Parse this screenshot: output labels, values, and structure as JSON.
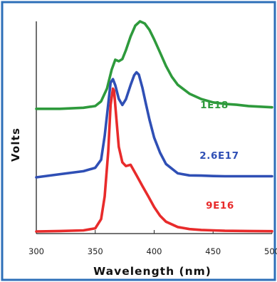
{
  "chart_data": {
    "type": "line",
    "xlabel": "Wavelength (nm)",
    "ylabel": "Volts",
    "xlim": [
      300,
      500
    ],
    "xticks": [
      300,
      350,
      400,
      450,
      500
    ],
    "xtick_labels": [
      "300",
      "350",
      "400",
      "450",
      "500"
    ],
    "grid": false,
    "y_ticks_shown": false,
    "series": [
      {
        "name": "1E18",
        "color": "#2e9a3c",
        "x": [
          300,
          320,
          340,
          350,
          355,
          360,
          364,
          367,
          370,
          373,
          376,
          380,
          384,
          388,
          392,
          396,
          400,
          405,
          410,
          415,
          420,
          430,
          440,
          450,
          460,
          470,
          480,
          490,
          500
        ],
        "y": [
          0.588,
          0.588,
          0.593,
          0.601,
          0.623,
          0.684,
          0.773,
          0.819,
          0.812,
          0.822,
          0.864,
          0.929,
          0.98,
          1.0,
          0.99,
          0.96,
          0.915,
          0.853,
          0.79,
          0.739,
          0.701,
          0.659,
          0.634,
          0.618,
          0.611,
          0.607,
          0.601,
          0.598,
          0.595
        ]
      },
      {
        "name": "2.6E17",
        "color": "#2f4fb5",
        "x": [
          300,
          320,
          340,
          350,
          355,
          358,
          361,
          363,
          365,
          367,
          370,
          373,
          376,
          380,
          383,
          385,
          387,
          390,
          393,
          396,
          400,
          405,
          410,
          420,
          430,
          440,
          450,
          460,
          480,
          500
        ],
        "y": [
          0.265,
          0.28,
          0.294,
          0.31,
          0.348,
          0.46,
          0.61,
          0.711,
          0.728,
          0.699,
          0.635,
          0.606,
          0.633,
          0.7,
          0.746,
          0.76,
          0.749,
          0.687,
          0.611,
          0.537,
          0.452,
          0.381,
          0.328,
          0.284,
          0.274,
          0.273,
          0.271,
          0.27,
          0.27,
          0.27
        ]
      },
      {
        "name": "9E16",
        "color": "#e82b2b",
        "x": [
          300,
          320,
          340,
          350,
          355,
          358,
          361,
          363,
          365,
          366,
          368,
          370,
          373,
          376,
          380,
          385,
          390,
          395,
          400,
          405,
          410,
          420,
          430,
          440,
          450,
          460,
          480,
          500
        ],
        "y": [
          0.01,
          0.012,
          0.015,
          0.025,
          0.068,
          0.175,
          0.387,
          0.606,
          0.683,
          0.673,
          0.539,
          0.409,
          0.336,
          0.318,
          0.324,
          0.275,
          0.224,
          0.176,
          0.125,
          0.084,
          0.056,
          0.031,
          0.021,
          0.017,
          0.015,
          0.013,
          0.012,
          0.011
        ]
      }
    ]
  }
}
